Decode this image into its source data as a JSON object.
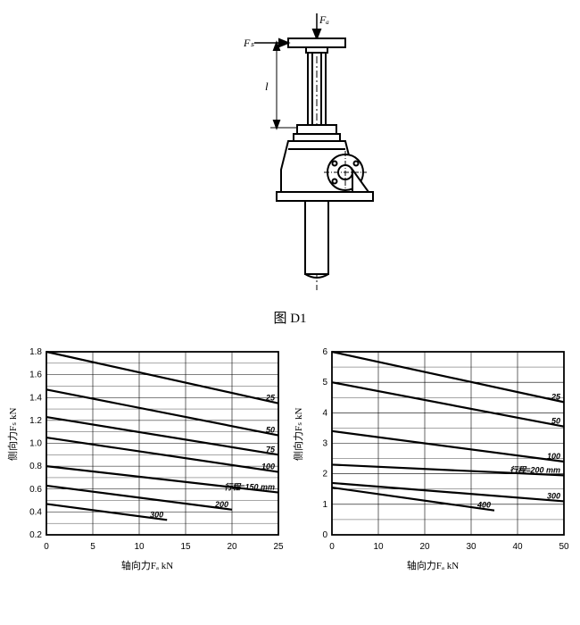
{
  "top_diagram": {
    "label_Fs_top": "Fₐ",
    "label_Fs_side": "Fₛ",
    "label_l": "l"
  },
  "caption": "图 D1",
  "chart_left": {
    "type": "line",
    "xlabel": "轴向力Fₐ  kN",
    "ylabel": "侧向力Fₛ  kN",
    "xlim": [
      0,
      25
    ],
    "ylim": [
      0.2,
      1.8
    ],
    "xtick_step": 5,
    "ytick_step": 0.2,
    "stroke_label": "行程=150 mm",
    "grid_color": "#000000",
    "bg_color": "#ffffff",
    "font_size_ticks": 10,
    "font_size_curve": 9,
    "series": [
      {
        "label": "25",
        "x1": 0,
        "y1": 1.8,
        "x2": 25,
        "y2": 1.35
      },
      {
        "label": "50",
        "x1": 0,
        "y1": 1.47,
        "x2": 25,
        "y2": 1.07
      },
      {
        "label": "75",
        "x1": 0,
        "y1": 1.23,
        "x2": 25,
        "y2": 0.9
      },
      {
        "label": "100",
        "x1": 0,
        "y1": 1.05,
        "x2": 25,
        "y2": 0.75
      },
      {
        "label": "stroke",
        "label_text": "行程=150 mm",
        "x1": 0,
        "y1": 0.8,
        "x2": 25,
        "y2": 0.57
      },
      {
        "label": "200",
        "x1": 0,
        "y1": 0.63,
        "x2": 20,
        "y2": 0.42
      },
      {
        "label": "300",
        "x1": 0,
        "y1": 0.47,
        "x2": 13,
        "y2": 0.33
      }
    ]
  },
  "chart_right": {
    "type": "line",
    "xlabel": "轴向力Fₐ  kN",
    "ylabel": "侧向力Fₛ  kN",
    "xlim": [
      0,
      50
    ],
    "ylim": [
      0,
      6
    ],
    "xtick_step": 10,
    "ytick_step": 1,
    "stroke_label": "行程=200 mm",
    "grid_color": "#000000",
    "bg_color": "#ffffff",
    "font_size_ticks": 10,
    "font_size_curve": 9,
    "series": [
      {
        "label": "25",
        "x1": 0,
        "y1": 6.0,
        "x2": 50,
        "y2": 4.35
      },
      {
        "label": "50",
        "x1": 0,
        "y1": 5.0,
        "x2": 50,
        "y2": 3.55
      },
      {
        "label": "100",
        "x1": 0,
        "y1": 3.4,
        "x2": 50,
        "y2": 2.4
      },
      {
        "label": "stroke",
        "label_text": "行程=200 mm",
        "x1": 0,
        "y1": 2.3,
        "x2": 50,
        "y2": 1.95
      },
      {
        "label": "300",
        "x1": 0,
        "y1": 1.7,
        "x2": 50,
        "y2": 1.1
      },
      {
        "label": "400",
        "x1": 0,
        "y1": 1.55,
        "x2": 35,
        "y2": 0.8
      }
    ]
  }
}
